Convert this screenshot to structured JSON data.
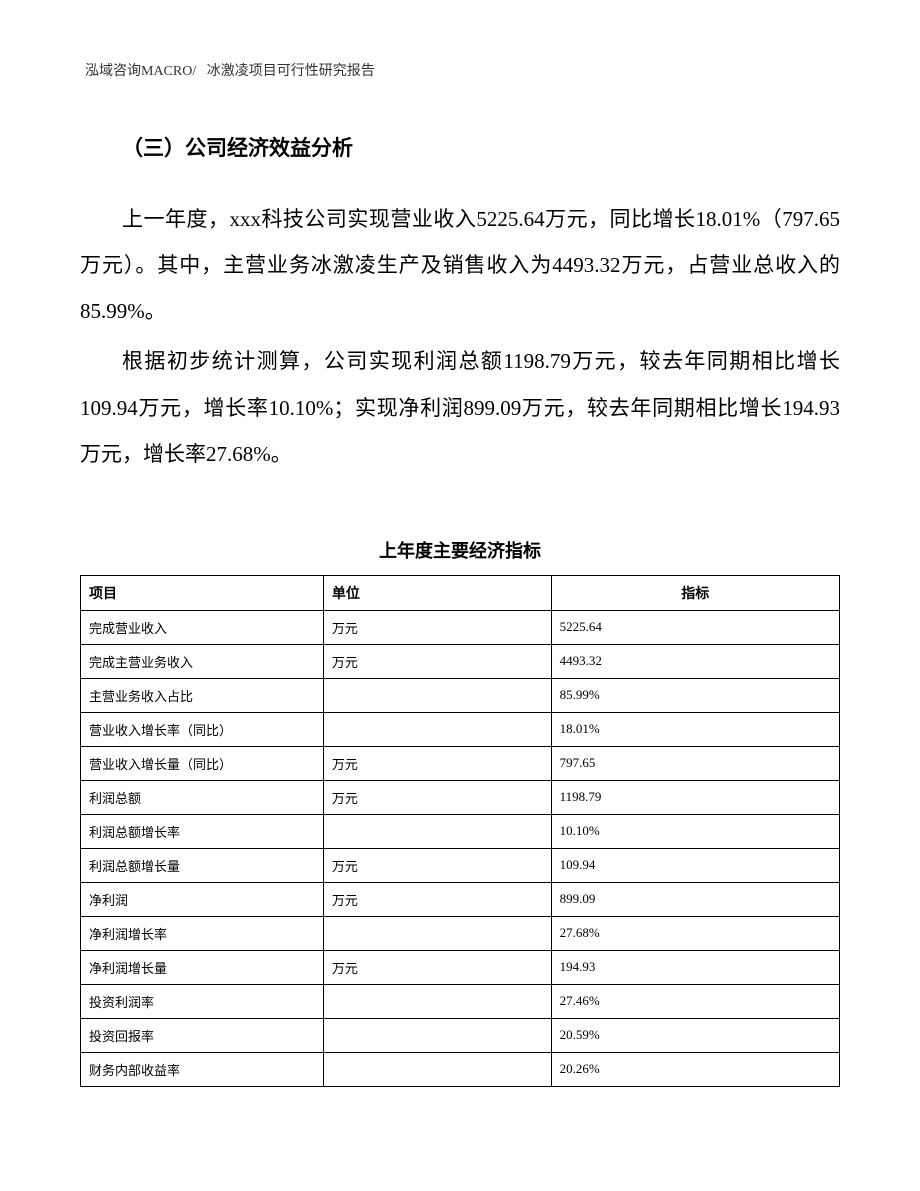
{
  "header": {
    "company": "泓域咨询MACRO/",
    "report_title": "冰激凌项目可行性研究报告"
  },
  "section": {
    "title": "（三）公司经济效益分析",
    "para1": "上一年度，xxx科技公司实现营业收入5225.64万元，同比增长18.01%（797.65万元）。其中，主营业务冰激凌生产及销售收入为4493.32万元，占营业总收入的85.99%。",
    "para2": "根据初步统计测算，公司实现利润总额1198.79万元，较去年同期相比增长109.94万元，增长率10.10%；实现净利润899.09万元，较去年同期相比增长194.93万元，增长率27.68%。"
  },
  "table": {
    "title": "上年度主要经济指标",
    "columns": [
      "项目",
      "单位",
      "指标"
    ],
    "rows": [
      [
        "完成营业收入",
        "万元",
        "5225.64"
      ],
      [
        "完成主营业务收入",
        "万元",
        "4493.32"
      ],
      [
        "主营业务收入占比",
        "",
        "85.99%"
      ],
      [
        "营业收入增长率（同比）",
        "",
        "18.01%"
      ],
      [
        "营业收入增长量（同比）",
        "万元",
        "797.65"
      ],
      [
        "利润总额",
        "万元",
        "1198.79"
      ],
      [
        "利润总额增长率",
        "",
        "10.10%"
      ],
      [
        "利润总额增长量",
        "万元",
        "109.94"
      ],
      [
        "净利润",
        "万元",
        "899.09"
      ],
      [
        "净利润增长率",
        "",
        "27.68%"
      ],
      [
        "净利润增长量",
        "万元",
        "194.93"
      ],
      [
        "投资利润率",
        "",
        "27.46%"
      ],
      [
        "投资回报率",
        "",
        "20.59%"
      ],
      [
        "财务内部收益率",
        "",
        "20.26%"
      ]
    ]
  }
}
